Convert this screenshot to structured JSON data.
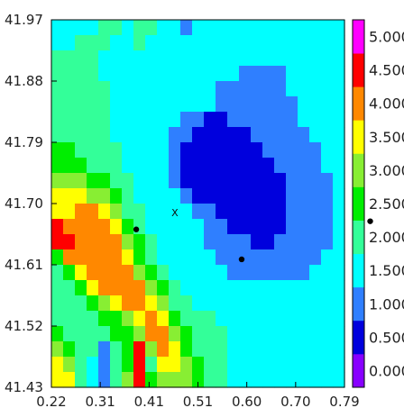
{
  "chart_data": {
    "type": "heatmap",
    "title": "",
    "xlabel": "",
    "ylabel": "",
    "xlim": [
      0.22,
      0.79
    ],
    "ylim": [
      41.43,
      41.97
    ],
    "x_ticks": [
      "0.22",
      "0.31",
      "0.41",
      "0.51",
      "0.60",
      "0.70",
      "0.79"
    ],
    "y_ticks": [
      "41.97",
      "41.88",
      "41.79",
      "41.70",
      "41.61",
      "41.52",
      "41.43"
    ],
    "colorbar": {
      "labels": [
        "0.000",
        "0.500",
        "1.000",
        "1.500",
        "2.000",
        "2.500",
        "3.000",
        "3.500",
        "4.000",
        "4.500",
        "5.000"
      ],
      "range": [
        0.0,
        5.5
      ],
      "colors": [
        "#8800ff",
        "#0000dd",
        "#2f7fff",
        "#00ffff",
        "#33ff99",
        "#00ee00",
        "#88ee33",
        "#ffff00",
        "#ff8800",
        "#ff0000",
        "#ff00ff"
      ]
    },
    "grid": {
      "rows_top_to_bottom": [
        "3 3 3 3 4 4 3 4 4 3 3 2 3 3 3 3 3 3 3 3 3 3 3 3 3",
        "3 3 4 4 4 3 3 4 3 3 3 3 3 3 3 3 3 3 3 3 3 3 3 3 3",
        "4 4 4 4 3 3 3 3 3 3 3 3 3 3 3 3 3 3 3 3 3 3 3 3 3",
        "4 4 4 4 3 3 3 3 3 3 3 3 3 3 3 3 2 2 2 2 3 3 3 3 3",
        "4 4 4 4 4 3 3 3 3 3 3 3 3 3 2 2 2 2 2 2 3 3 3 3 3",
        "4 4 4 4 4 3 3 3 3 3 3 3 3 3 2 2 2 2 2 2 2 3 3 3 3",
        "4 4 4 4 4 3 3 3 3 3 3 2 2 1 1 2 2 2 2 2 2 3 3 3 3",
        "4 4 4 4 4 3 3 3 3 3 2 2 1 1 1 1 1 2 2 2 2 2 3 3 3",
        "5 5 4 4 4 4 3 3 3 3 2 1 1 1 1 1 1 1 2 2 2 2 2 3 3",
        "5 5 5 4 4 4 3 3 3 3 2 1 1 1 1 1 1 1 1 2 2 2 2 3 3",
        "6 6 6 5 5 4 4 3 3 3 2 1 1 1 1 1 1 1 1 1 2 2 2 2 3",
        "7 7 7 6 6 5 4 3 3 3 3 2 1 1 1 1 1 1 1 1 2 2 2 2 3",
        "7 7 8 8 7 6 4 4 3 3 3 3 2 2 1 1 1 1 1 1 2 2 2 2 3",
        "9 8 8 8 8 7 5 4 3 3 3 3 3 2 2 1 1 1 1 1 2 2 2 2 3",
        "9 9 8 8 8 8 6 5 4 3 3 3 3 2 2 2 2 1 1 2 2 2 2 2 3",
        "5 8 8 8 8 8 7 5 4 3 3 3 3 3 2 2 2 2 2 2 2 2 2 3 3",
        "4 5 7 8 8 8 8 6 5 4 3 3 3 3 3 2 2 2 2 2 2 2 3 3 3",
        "4 4 5 7 8 8 8 8 6 5 4 3 3 3 3 3 3 3 3 3 3 3 3 3 3",
        "4 4 4 5 6 7 8 8 7 6 4 4 3 3 3 3 3 3 3 3 3 3 3 3 3",
        "4 4 4 4 5 5 6 7 8 7 5 4 4 4 3 3 3 3 3 3 3 3 3 3 3",
        "5 4 4 4 4 5 5 6 8 8 6 5 4 4 4 3 3 3 3 3 3 3 3 3 3",
        "6 5 4 4 2 4 5 9 6 8 7 5 4 4 4 3 3 3 3 3 3 3 3 3 3",
        "7 6 4 3 2 4 5 9 4 7 7 6 5 4 4 3 3 3 3 3 3 3 3 3 3",
        "7 7 4 3 2 4 6 9 5 6 6 6 5 4 4 3 3 3 3 3 3 3 3 3 3"
      ]
    },
    "markers": [
      {
        "kind": "dot",
        "x": 0.385,
        "y": 41.662
      },
      {
        "kind": "dot",
        "x": 0.59,
        "y": 41.618
      },
      {
        "kind": "x",
        "label": "X",
        "x": 0.46,
        "y": 41.687
      },
      {
        "kind": "dot",
        "x": 0.84,
        "y": 41.674
      }
    ]
  }
}
